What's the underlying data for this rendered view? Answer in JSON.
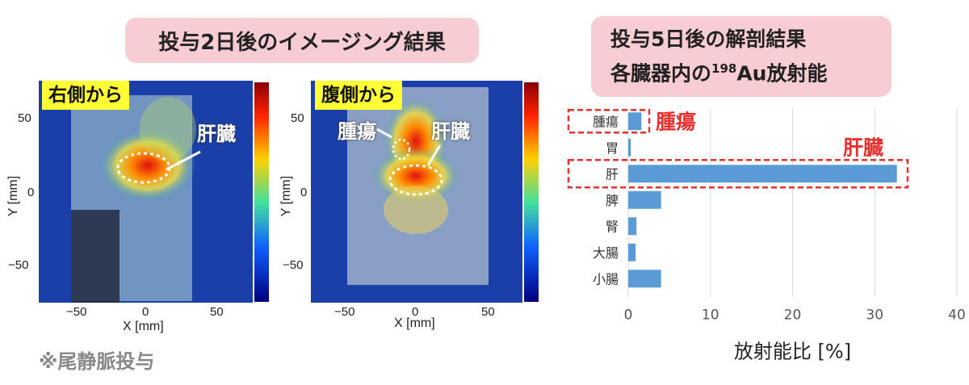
{
  "left_title": "投与2日後のイメージング結果",
  "right_title_line1": "投与5日後の解剖結果",
  "right_title_line2_prefix": "各臓器内の",
  "right_title_sup": "198",
  "right_title_line2_suffix": "Au放射能",
  "panel_right_side": {
    "label": "右側から",
    "annotation_liver": "肝臓",
    "x_label": "X [mm]",
    "y_label": "Y [mm]",
    "x_ticks": [
      "−50",
      "0",
      "50"
    ],
    "y_ticks": [
      "50",
      "0",
      "−50"
    ]
  },
  "panel_ventral": {
    "label": "腹側から",
    "annotation_tumor": "腫瘍",
    "annotation_liver": "肝臓",
    "x_label": "X [mm]",
    "y_label": "Y [mm]",
    "x_ticks": [
      "−50",
      "0",
      "50"
    ],
    "y_ticks": [
      "50",
      "0",
      "−50"
    ]
  },
  "note": "※尾静脈投与",
  "colors": {
    "title_box": "#f7cdd3",
    "bar": "#5b9bd5",
    "highlight": "#e8312f",
    "label_bg": "#ffff33"
  },
  "chart_data": {
    "type": "bar",
    "orientation": "horizontal",
    "categories": [
      "腫瘍",
      "胃",
      "肝",
      "脾",
      "腎",
      "大腸",
      "小腸"
    ],
    "values": [
      1.6,
      0.3,
      32.7,
      4.0,
      1.0,
      0.9,
      4.0
    ],
    "xlabel": "放射能比 [%]",
    "xlim": [
      0,
      40
    ],
    "x_ticks": [
      0,
      10,
      20,
      30,
      40
    ],
    "grid": "vertical",
    "highlighted": [
      {
        "category": "腫瘍",
        "label": "腫瘍"
      },
      {
        "category": "肝",
        "label": "肝臓"
      }
    ]
  }
}
